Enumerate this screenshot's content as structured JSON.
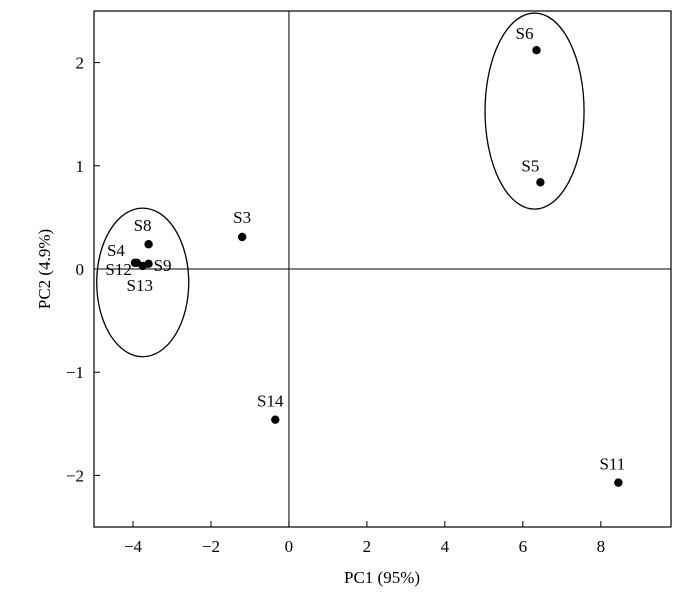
{
  "chart_data": {
    "type": "scatter",
    "xlabel": "PC1 (95%)",
    "ylabel": "PC2 (4.9%)",
    "xlim": [
      -5,
      9.8
    ],
    "ylim": [
      -2.5,
      2.5
    ],
    "x_ticks": [
      -4,
      -2,
      0,
      2,
      4,
      6,
      8
    ],
    "y_ticks": [
      -2,
      -1,
      0,
      1,
      2
    ],
    "x_tick_labels": [
      "−4",
      "−2",
      "0",
      "2",
      "4",
      "6",
      "8"
    ],
    "y_tick_labels": [
      "−2",
      "−1",
      "0",
      "1",
      "2"
    ],
    "grid": false,
    "zero_lines": true,
    "points": [
      {
        "label": "S3",
        "x": -1.2,
        "y": 0.31
      },
      {
        "label": "S4",
        "x": -3.95,
        "y": 0.06
      },
      {
        "label": "S5",
        "x": 6.45,
        "y": 0.84
      },
      {
        "label": "S6",
        "x": 6.35,
        "y": 2.12
      },
      {
        "label": "S8",
        "x": -3.6,
        "y": 0.24
      },
      {
        "label": "S9",
        "x": -3.6,
        "y": 0.05
      },
      {
        "label": "S11",
        "x": 8.45,
        "y": -2.07
      },
      {
        "label": "S12",
        "x": -3.9,
        "y": 0.06
      },
      {
        "label": "S13",
        "x": -3.75,
        "y": 0.03
      },
      {
        "label": "S14",
        "x": -0.35,
        "y": -1.46
      }
    ],
    "clusters": [
      {
        "cx": -3.75,
        "cy": -0.13,
        "rx": 1.18,
        "ry": 0.72
      },
      {
        "cx": 6.3,
        "cy": 1.53,
        "rx": 1.27,
        "ry": 0.95
      }
    ]
  }
}
